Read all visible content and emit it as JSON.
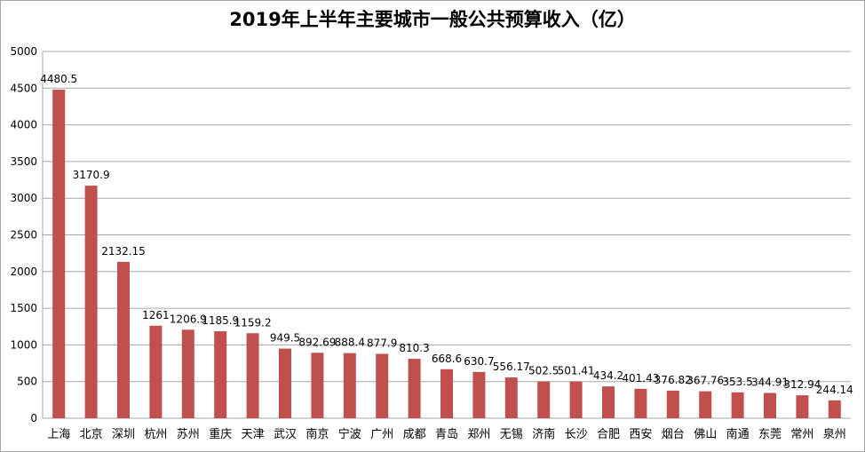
{
  "chart_data": {
    "type": "bar",
    "title": "2019年上半年主要城市一般公共预算收入（亿）",
    "xlabel": "",
    "ylabel": "",
    "ylim": [
      0,
      5000
    ],
    "yticks": [
      0,
      500,
      1000,
      1500,
      2000,
      2500,
      3000,
      3500,
      4000,
      4500,
      5000
    ],
    "grid": true,
    "legend": "none",
    "bar_color": "#c0504d",
    "categories": [
      "上海",
      "北京",
      "深圳",
      "杭州",
      "苏州",
      "重庆",
      "天津",
      "武汉",
      "南京",
      "宁波",
      "广州",
      "成都",
      "青岛",
      "郑州",
      "无锡",
      "济南",
      "长沙",
      "合肥",
      "西安",
      "烟台",
      "佛山",
      "南通",
      "东莞",
      "常州",
      "泉州"
    ],
    "values": [
      4480.5,
      3170.9,
      2132.15,
      1261,
      1206.9,
      1185.9,
      1159.2,
      949.5,
      892.69,
      888.4,
      877.9,
      810.3,
      668.6,
      630.7,
      556.17,
      502.5,
      501.41,
      434.2,
      401.43,
      376.82,
      367.76,
      353.5,
      344.91,
      312.94,
      244.14
    ],
    "data_labels": [
      "4480.5",
      "3170.9",
      "2132.15",
      "1261",
      "1206.9",
      "1185.9",
      "1159.2",
      "949.5",
      "892.69",
      "888.4",
      "877.9",
      "810.3",
      "668.6",
      "630.7",
      "556.17",
      "502.5",
      "501.41",
      "434.2",
      "401.43",
      "376.82",
      "367.76",
      "353.5",
      "344.91",
      "312.94",
      "244.14"
    ]
  }
}
